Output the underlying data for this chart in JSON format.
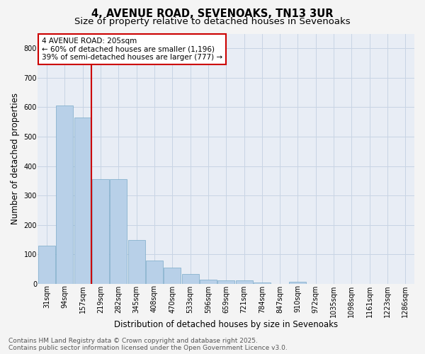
{
  "title": "4, AVENUE ROAD, SEVENOAKS, TN13 3UR",
  "subtitle": "Size of property relative to detached houses in Sevenoaks",
  "xlabel": "Distribution of detached houses by size in Sevenoaks",
  "ylabel": "Number of detached properties",
  "categories": [
    "31sqm",
    "94sqm",
    "157sqm",
    "219sqm",
    "282sqm",
    "345sqm",
    "408sqm",
    "470sqm",
    "533sqm",
    "596sqm",
    "659sqm",
    "721sqm",
    "784sqm",
    "847sqm",
    "910sqm",
    "972sqm",
    "1035sqm",
    "1098sqm",
    "1161sqm",
    "1223sqm",
    "1286sqm"
  ],
  "values": [
    130,
    605,
    565,
    355,
    355,
    150,
    80,
    55,
    33,
    15,
    13,
    13,
    5,
    0,
    8,
    0,
    0,
    0,
    0,
    0,
    0
  ],
  "bar_color": "#b8d0e8",
  "bar_edge_color": "#7aaac8",
  "red_line_index": 3,
  "annotation_text": "4 AVENUE ROAD: 205sqm\n← 60% of detached houses are smaller (1,196)\n39% of semi-detached houses are larger (777) →",
  "annotation_box_color": "#ffffff",
  "annotation_box_edge": "#cc0000",
  "annotation_text_color": "#000000",
  "red_line_color": "#cc0000",
  "ylim": [
    0,
    850
  ],
  "yticks": [
    0,
    100,
    200,
    300,
    400,
    500,
    600,
    700,
    800
  ],
  "grid_color": "#c8d4e4",
  "background_color": "#e8edf5",
  "fig_background_color": "#f4f4f4",
  "footer": "Contains HM Land Registry data © Crown copyright and database right 2025.\nContains public sector information licensed under the Open Government Licence v3.0.",
  "title_fontsize": 10.5,
  "subtitle_fontsize": 9.5,
  "xlabel_fontsize": 8.5,
  "ylabel_fontsize": 8.5,
  "tick_fontsize": 7,
  "footer_fontsize": 6.5,
  "annotation_fontsize": 7.5
}
